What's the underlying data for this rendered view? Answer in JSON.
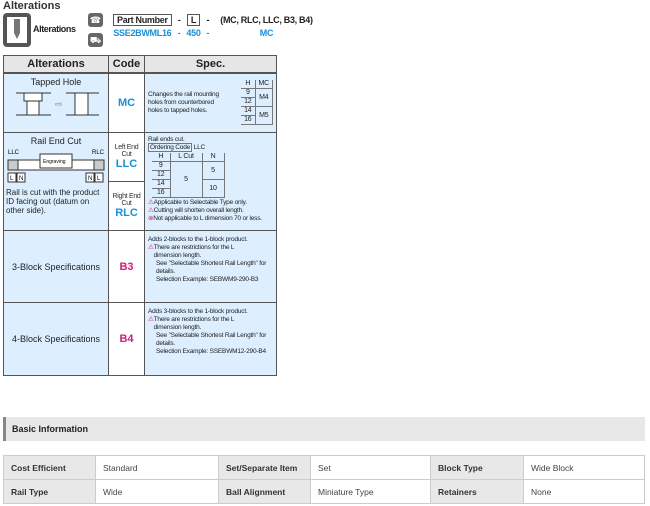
{
  "section_title": "Alterations",
  "header": {
    "icon_label": "Alterations",
    "part_number_label": "Part Number",
    "l_label": "L",
    "dash": "-",
    "options": "(MC, RLC,  LLC, B3, B4)",
    "part_number_value": "SSE2BWML16",
    "l_value": "450",
    "option_value": "MC"
  },
  "table": {
    "columns": [
      "Alterations",
      "Code",
      "Spec."
    ],
    "tapped": {
      "name": "Tapped Hole",
      "code": "MC",
      "desc": "Changes the rail mounting holes from counterbored holes to tapped holes.",
      "mini": {
        "h": "H",
        "mc": "MC",
        "rows": [
          [
            "9",
            "12",
            "M4"
          ],
          [
            "14",
            "16",
            "M5"
          ]
        ]
      }
    },
    "endcut": {
      "name": "Rail End Cut",
      "llc": "LLC",
      "rlc": "RLC",
      "l": "L",
      "n": "N",
      "engraving": "Engraving",
      "desc": "Rail is cut with the product ID facing out (datum on other side).",
      "left_label": "Left End Cut",
      "left_code": "LLC",
      "right_label": "Right End Cut",
      "right_code": "RLC",
      "spec_intro": "Rail ends cut.",
      "ordering_code": "Ordering Code",
      "ordering_value": "LLC",
      "mini": {
        "h": "H",
        "lcut": "L Cut",
        "n": "N",
        "h_vals": [
          "9",
          "12",
          "14",
          "16"
        ],
        "lcut_val": "5",
        "n_vals": [
          "5",
          "10"
        ]
      },
      "notes": [
        "Applicable to Selectable Type only.",
        "Cutting will shorten overall length.",
        "Not applicable to L dimension 70 or less."
      ]
    },
    "b3": {
      "name": "3-Block Specifications",
      "code": "B3",
      "lines": [
        "Adds 2-blocks to the 1-block product.",
        "There are restrictions for the L dimension length.",
        "See \"Selectable Shortest Rail Length\" for details.",
        "Selection Example: SEBWM9-290-B3"
      ]
    },
    "b4": {
      "name": "4-Block Specifications",
      "code": "B4",
      "lines": [
        "Adds 3-blocks to the 1-block product.",
        "There are restrictions for the L dimension length.",
        "See \"Selectable Shortest Rail Length\" for details.",
        "Selection Example: SSEBWM12-290-B4"
      ]
    }
  },
  "basic_info": {
    "title": "Basic Information",
    "rows": [
      [
        [
          "Cost Efficient",
          "Standard"
        ],
        [
          "Set/Separate Item",
          "Set"
        ],
        [
          "Block Type",
          "Wide Block"
        ]
      ],
      [
        [
          "Rail Type",
          "Wide"
        ],
        [
          "Ball Alignment",
          "Miniature Type"
        ],
        [
          "Retainers",
          "None"
        ]
      ]
    ]
  },
  "colors": {
    "accent_blue": "#1a8fd6",
    "accent_magenta": "#d0207a",
    "cell_blue": "#ddeeff"
  }
}
